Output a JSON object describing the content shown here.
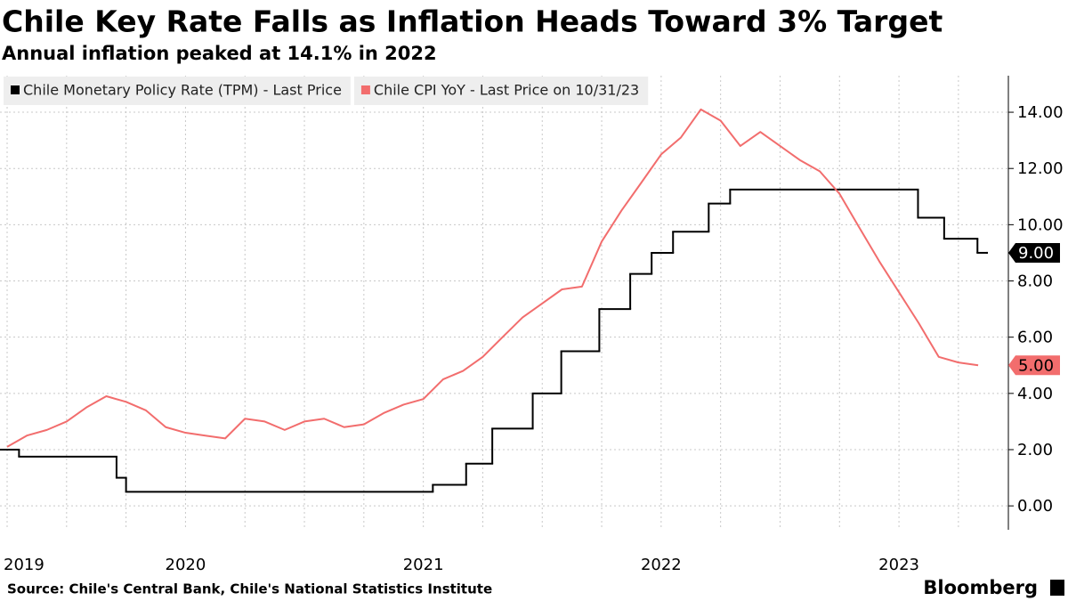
{
  "chart_data": {
    "type": "line",
    "title": "Chile Key Rate Falls as Inflation Heads Toward 3% Target",
    "subtitle": "Annual inflation peaked at 14.1% in 2022",
    "source": "Source: Chile's Central Bank, Chile's National Statistics Institute",
    "brand": "Bloomberg",
    "legend": "top-left",
    "grid": true,
    "xlim": [
      2019.72,
      2023.96
    ],
    "xticks": [
      {
        "value": 2019.5,
        "label": "2019"
      },
      {
        "value": 2020.5,
        "label": "2020"
      },
      {
        "value": 2021.5,
        "label": "2021"
      },
      {
        "value": 2022.5,
        "label": "2022"
      },
      {
        "value": 2023.5,
        "label": "2023"
      }
    ],
    "x_gridlines": [
      2019.75,
      2020,
      2020.25,
      2020.5,
      2020.75,
      2021,
      2021.25,
      2021.5,
      2021.75,
      2022,
      2022.25,
      2022.5,
      2022.75,
      2023,
      2023.25,
      2023.5,
      2023.75
    ],
    "ylim": [
      -0.85,
      15.3
    ],
    "yticks": [
      {
        "value": 0,
        "label": "0.00"
      },
      {
        "value": 2,
        "label": "2.00"
      },
      {
        "value": 4,
        "label": "4.00"
      },
      {
        "value": 6,
        "label": "6.00"
      },
      {
        "value": 8,
        "label": "8.00"
      },
      {
        "value": 10,
        "label": "10.00"
      },
      {
        "value": 12,
        "label": "12.00"
      },
      {
        "value": 14,
        "label": "14.00"
      }
    ],
    "series": [
      {
        "name": "Chile Monetary Policy Rate (TPM) - Last Price",
        "color": "#000000",
        "step": "post",
        "x": [
          2019.72,
          2019.8,
          2020.21,
          2020.25,
          2021.54,
          2021.68,
          2021.79,
          2021.96,
          2022.08,
          2022.24,
          2022.37,
          2022.46,
          2022.55,
          2022.7,
          2022.79,
          2023.58,
          2023.69,
          2023.83,
          2023.87
        ],
        "values": [
          2.0,
          1.75,
          1.0,
          0.5,
          0.75,
          1.5,
          2.75,
          4.0,
          5.5,
          7.0,
          8.25,
          9.0,
          9.75,
          10.75,
          11.25,
          10.25,
          9.5,
          9.0,
          9.0
        ],
        "last_value_label": "9.00"
      },
      {
        "name": "Chile CPI YoY - Last Price on 10/31/23",
        "color": "#f26d6d",
        "x": [
          2019.75,
          2019.833,
          2019.917,
          2020.0,
          2020.083,
          2020.167,
          2020.25,
          2020.333,
          2020.417,
          2020.5,
          2020.583,
          2020.667,
          2020.75,
          2020.833,
          2020.917,
          2021.0,
          2021.083,
          2021.167,
          2021.25,
          2021.333,
          2021.417,
          2021.5,
          2021.583,
          2021.667,
          2021.75,
          2021.833,
          2021.917,
          2022.0,
          2022.083,
          2022.167,
          2022.25,
          2022.333,
          2022.417,
          2022.5,
          2022.583,
          2022.667,
          2022.75,
          2022.833,
          2022.917,
          2023.0,
          2023.083,
          2023.167,
          2023.25,
          2023.333,
          2023.417,
          2023.5,
          2023.583,
          2023.667,
          2023.75,
          2023.833
        ],
        "values": [
          2.1,
          2.5,
          2.7,
          3.0,
          3.5,
          3.9,
          3.7,
          3.4,
          2.8,
          2.6,
          2.5,
          2.4,
          3.1,
          3.0,
          2.7,
          3.0,
          3.1,
          2.8,
          2.9,
          3.3,
          3.6,
          3.8,
          4.5,
          4.8,
          5.3,
          6.0,
          6.7,
          7.2,
          7.7,
          7.8,
          9.4,
          10.5,
          11.5,
          12.5,
          13.1,
          14.1,
          13.7,
          12.8,
          13.3,
          12.8,
          12.3,
          11.9,
          11.1,
          9.9,
          8.7,
          7.6,
          6.5,
          5.3,
          5.1,
          5.0
        ],
        "last_value_label": "5.00"
      }
    ]
  }
}
